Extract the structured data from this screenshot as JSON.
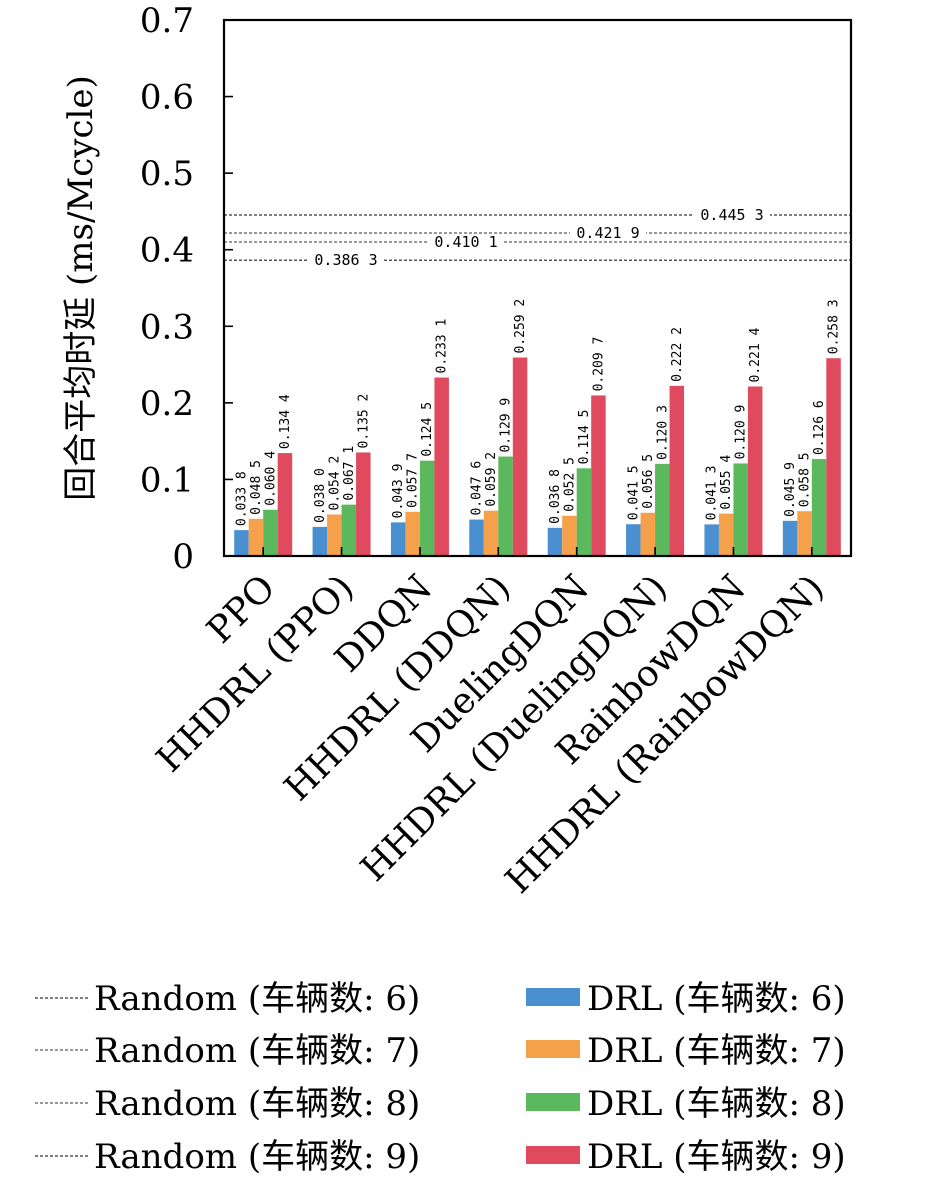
{
  "chart_data": {
    "type": "bar",
    "title": "",
    "xlabel": "",
    "ylabel": "回合平均时延 (ms/Mcycle)",
    "ylim": [
      0,
      0.7
    ],
    "yticks": [
      0,
      0.1,
      0.2,
      0.3,
      0.4,
      0.5,
      0.6,
      0.7
    ],
    "ytick_labels": [
      "0",
      "0.1",
      "0.2",
      "0.3",
      "0.4",
      "0.5",
      "0.6",
      "0.7"
    ],
    "grid": false,
    "legend_position": "bottom",
    "categories": [
      "PPO",
      "HHDRL (PPO)",
      "DDQN",
      "HHDRL (DDQN)",
      "DuelingDQN",
      "HHDRL (DuelingDQN)",
      "RainbowDQN",
      "HHDRL (RainbowDQN)"
    ],
    "series": [
      {
        "name": "DRL (车辆数: 6)",
        "color": "#4a90d0",
        "values": [
          0.0338,
          0.038,
          0.0439,
          0.0476,
          0.0368,
          0.0415,
          0.0413,
          0.0459
        ],
        "labels": [
          "0.033 8",
          "0.038 0",
          "0.043 9",
          "0.047 6",
          "0.036 8",
          "0.041 5",
          "0.041 3",
          "0.045 9"
        ]
      },
      {
        "name": "DRL (车辆数: 7)",
        "color": "#f5a04a",
        "values": [
          0.0485,
          0.0542,
          0.0577,
          0.0592,
          0.0525,
          0.0565,
          0.0554,
          0.0585
        ],
        "labels": [
          "0.048 5",
          "0.054 2",
          "0.057 7",
          "0.059 2",
          "0.052 5",
          "0.056 5",
          "0.055 4",
          "0.058 5"
        ]
      },
      {
        "name": "DRL (车辆数: 8)",
        "color": "#5cb85c",
        "values": [
          0.0604,
          0.0671,
          0.1245,
          0.1299,
          0.1145,
          0.1203,
          0.1209,
          0.1266
        ],
        "labels": [
          "0.060 4",
          "0.067 1",
          "0.124 5",
          "0.129 9",
          "0.114 5",
          "0.120 3",
          "0.120 9",
          "0.126 6"
        ]
      },
      {
        "name": "DRL (车辆数: 9)",
        "color": "#e04a5f",
        "values": [
          0.1344,
          0.1352,
          0.2331,
          0.2592,
          0.2097,
          0.2222,
          0.2214,
          0.2583
        ],
        "labels": [
          "0.134 4",
          "0.135 2",
          "0.233 1",
          "0.259 2",
          "0.209 7",
          "0.222 2",
          "0.221 4",
          "0.258 3"
        ]
      }
    ],
    "reference_lines": [
      {
        "name": "Random (车辆数: 6)",
        "value": 0.3863,
        "label": "0.386 3",
        "color": "#555555"
      },
      {
        "name": "Random (车辆数: 7)",
        "value": 0.4101,
        "label": "0.410 1",
        "color": "#777777"
      },
      {
        "name": "Random (车辆数: 8)",
        "value": 0.4219,
        "label": "0.421 9",
        "color": "#777777"
      },
      {
        "name": "Random (车辆数: 9)",
        "value": 0.4453,
        "label": "0.445 3",
        "color": "#555555"
      }
    ]
  }
}
